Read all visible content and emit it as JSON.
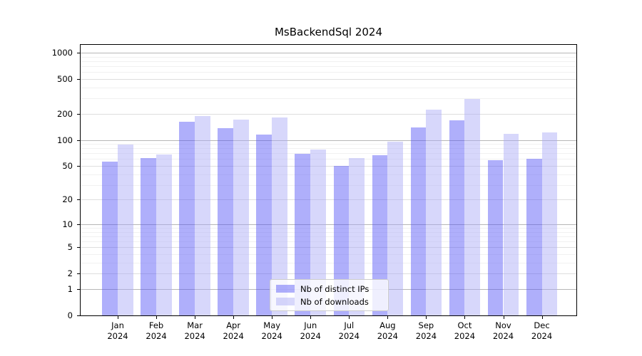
{
  "colors": {
    "distinct_ips": "rgba(85,85,247,0.47)",
    "downloads": "rgba(170,170,247,0.47)",
    "distinct_ips_on_white": "#aaaaf9",
    "downloads_on_white": "#d8d8f8",
    "grid_decade": "#b6b6b6",
    "grid_mid": "#dedede",
    "grid_minor": "#f1f1f1"
  },
  "chart_data": {
    "type": "bar",
    "title": "MsBackendSql 2024",
    "categories": [
      "Jan 2024",
      "Feb 2024",
      "Mar 2024",
      "Apr 2024",
      "May 2024",
      "Jun 2024",
      "Jul 2024",
      "Aug 2024",
      "Sep 2024",
      "Oct 2024",
      "Nov 2024",
      "Dec 2024"
    ],
    "series": [
      {
        "name": "Nb of distinct IPs",
        "values": [
          56,
          62,
          162,
          137,
          115,
          69,
          50,
          66,
          140,
          167,
          58,
          61
        ]
      },
      {
        "name": "Nb of downloads",
        "values": [
          88,
          68,
          190,
          170,
          181,
          78,
          62,
          96,
          222,
          298,
          118,
          122
        ]
      }
    ],
    "xlabel": "",
    "ylabel": "",
    "yscale": "log1p",
    "yticks": [
      0,
      1,
      2,
      5,
      10,
      20,
      50,
      100,
      200,
      500,
      1000
    ],
    "yticklabels": [
      "0",
      "1",
      "2",
      "5",
      "10",
      "20",
      "50",
      "100",
      "200",
      "500",
      "1000"
    ],
    "ylim": [
      0,
      1230
    ],
    "grid": "on",
    "legend_position": "lower-center"
  }
}
